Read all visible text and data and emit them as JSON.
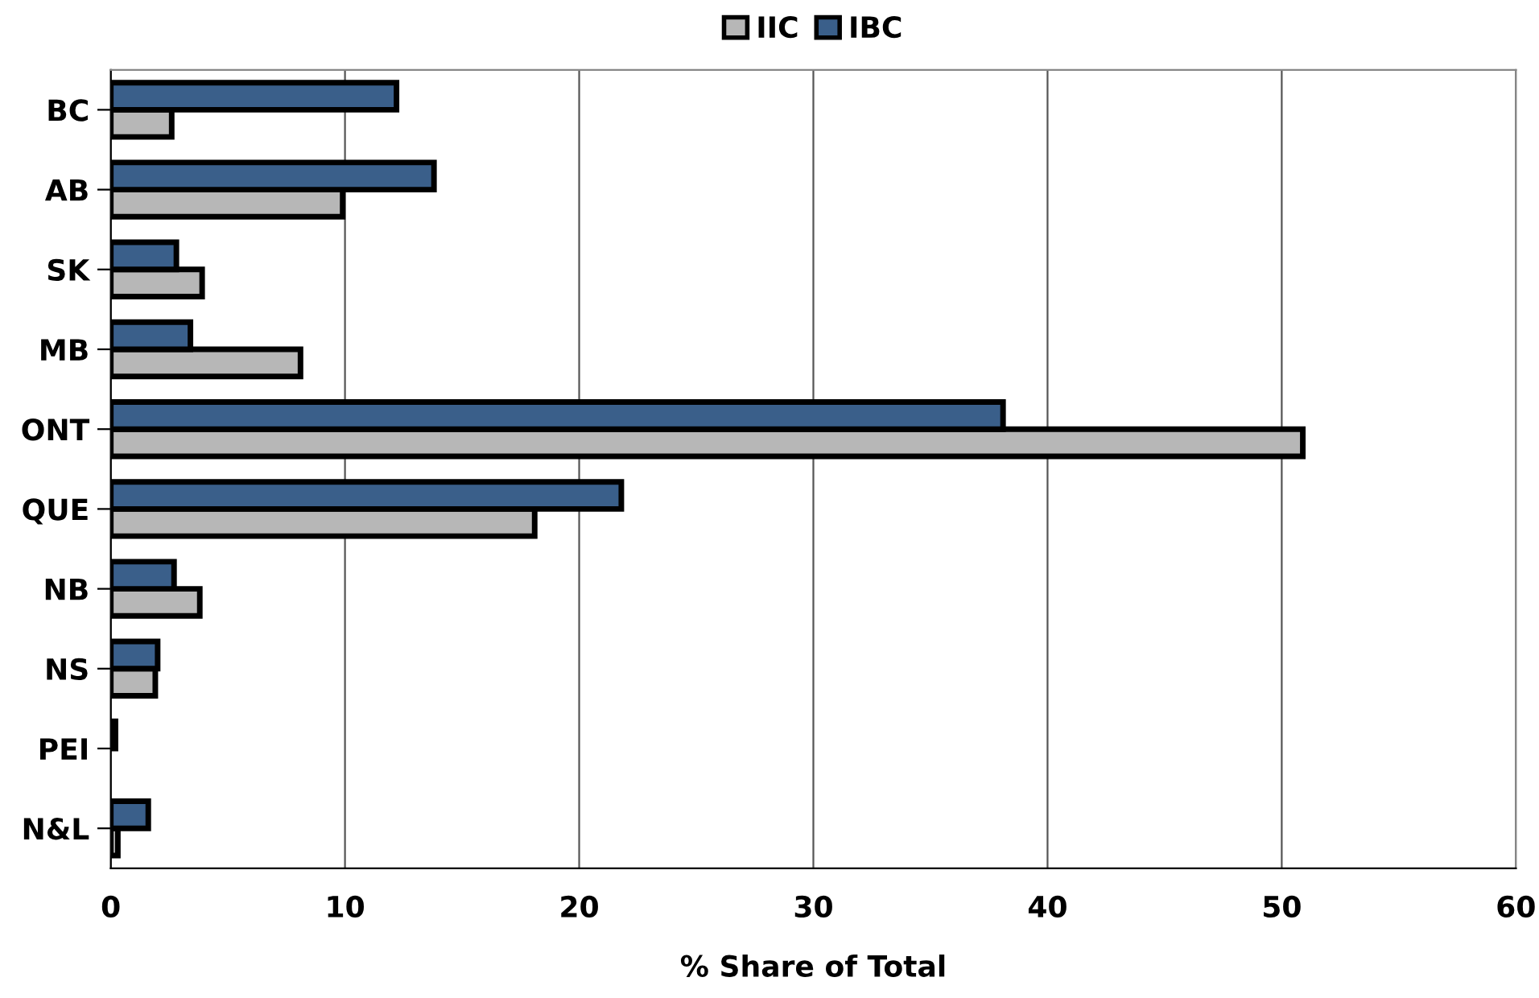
{
  "chart_data": {
    "type": "bar",
    "orientation": "horizontal",
    "xlabel": "% Share of Total",
    "categories": [
      "BC",
      "AB",
      "SK",
      "MB",
      "ONT",
      "QUE",
      "NB",
      "NS",
      "PEI",
      "N&L"
    ],
    "series": [
      {
        "name": "IIC",
        "color": "#b7b7b7",
        "values": [
          2.6,
          9.9,
          3.9,
          8.1,
          50.9,
          18.1,
          3.8,
          1.9,
          null,
          0.3
        ]
      },
      {
        "name": "IBC",
        "color": "#3a5f8a",
        "values": [
          12.2,
          13.8,
          2.8,
          3.4,
          38.1,
          21.8,
          2.7,
          2.0,
          0.2,
          1.6
        ]
      }
    ],
    "xlim": [
      0,
      60
    ],
    "xticks": [
      0,
      10,
      20,
      30,
      40,
      50,
      60
    ],
    "grid": "x",
    "legend": "top"
  }
}
